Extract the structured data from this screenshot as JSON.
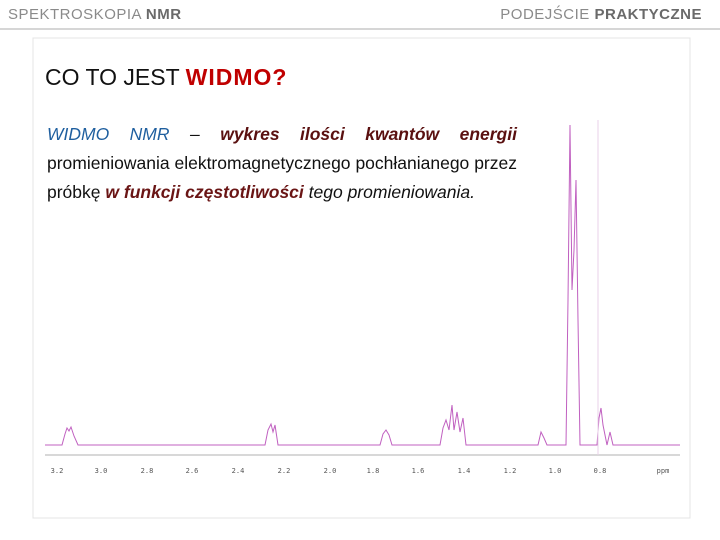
{
  "header": {
    "left": {
      "text": "SPEKTROSKOPIA",
      "bold": "NMR"
    },
    "right": {
      "text": "PODEJŚCIE",
      "bold": "PRAKTYCZNE"
    }
  },
  "title": {
    "text": "CO TO JEST",
    "highlight": "WIDMO?"
  },
  "definition": {
    "term": "WIDMO NMR",
    "dash": "–",
    "emphasis": "wykres ilości kwantów energii",
    "text": "promieniowania elektromagnetycznego pochłanianego przez próbkę",
    "emphasis2": "w funkcji częstotliwości",
    "end": "tego promieniowania."
  },
  "spectrum": {
    "axis_labels": [
      "3.2",
      "3.0",
      "2.8",
      "2.6",
      "2.4",
      "2.2",
      "2.0",
      "1.8",
      "1.6",
      "1.4",
      "1.2",
      "1.0",
      "0.8"
    ],
    "unit": "ppm"
  }
}
